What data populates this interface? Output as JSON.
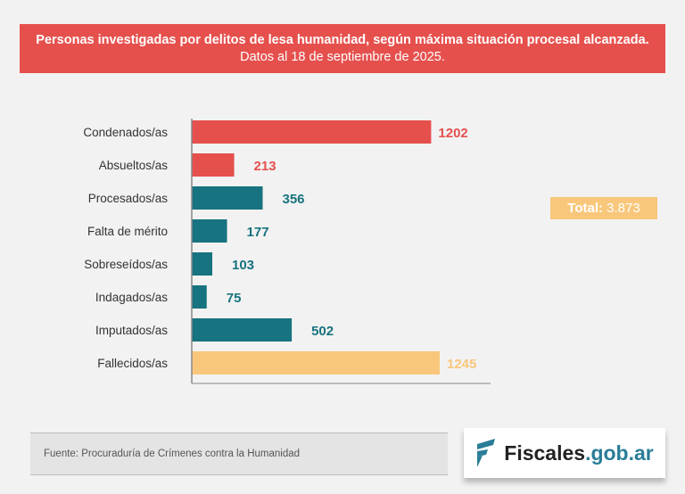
{
  "header": {
    "title_bold": "Personas investigadas por delitos de lesa humanidad, según máxima situación procesal alcanzada.",
    "title_rest": " Datos al 18 de septiembre de 2025."
  },
  "total": {
    "label": "Total:",
    "value": "3.873"
  },
  "footer": {
    "source": "Fuente: Procuraduría de Crímenes contra la Humanidad",
    "logo_main": "Fiscales",
    "logo_domain": ".gob.ar"
  },
  "colors": {
    "red": "#e5504d",
    "teal": "#17737f",
    "yellow": "#f9c77b"
  },
  "chart_data": {
    "type": "bar",
    "orientation": "horizontal",
    "categories": [
      "Condenados/as",
      "Absueltos/as",
      "Procesados/as",
      "Falta de mérito",
      "Sobreseídos/as",
      "Indagados/as",
      "Imputados/as",
      "Fallecidos/as"
    ],
    "values": [
      1202,
      213,
      356,
      177,
      103,
      75,
      502,
      1245
    ],
    "bar_colors": [
      "red",
      "red",
      "teal",
      "teal",
      "teal",
      "teal",
      "teal",
      "yellow"
    ],
    "xlim": [
      0,
      1500
    ],
    "grid": false,
    "data_labels": true
  }
}
